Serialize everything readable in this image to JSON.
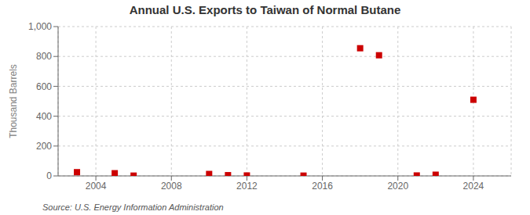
{
  "chart_data": {
    "type": "scatter",
    "title": "Annual U.S. Exports to Taiwan of Normal Butane",
    "ylabel": "Thousand Barrels",
    "annotations": [
      "Source: U.S. Energy Information Administration"
    ],
    "x": [
      2003,
      2005,
      2006,
      2010,
      2011,
      2012,
      2015,
      2018,
      2019,
      2021,
      2022,
      2024
    ],
    "values": [
      25,
      18,
      2,
      13,
      5,
      3,
      2,
      855,
      808,
      3,
      8,
      510
    ],
    "color": "#cc0000",
    "marker": "square",
    "xlim": [
      2002,
      2026
    ],
    "xticks": [
      2004,
      2008,
      2012,
      2016,
      2020,
      2024
    ],
    "ylim": [
      0,
      1000
    ],
    "yticks": [
      0,
      200,
      400,
      600,
      800,
      {
        "value": 1000,
        "label": "1,000"
      }
    ],
    "grid": true
  }
}
